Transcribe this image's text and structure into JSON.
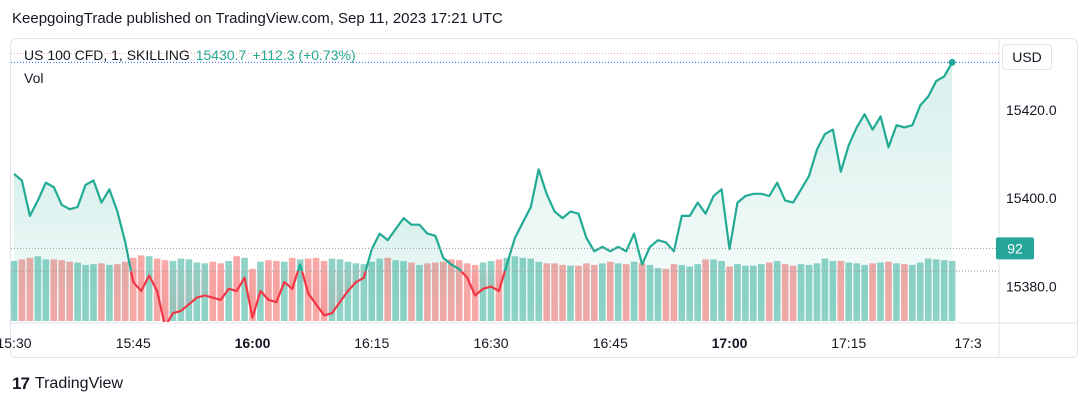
{
  "header": {
    "published_text": "KeepgoingTrade published on TradingView.com, Sep 11, 2023 17:21 UTC"
  },
  "legend": {
    "symbol": "US 100 CFD, 1, SKILLING",
    "price": "15430.7",
    "change": "+112.3 (+0.73%)",
    "volume_label": "Vol"
  },
  "currency_button": "USD",
  "volume_badge": "92",
  "footer": {
    "brand": "TradingView"
  },
  "colors": {
    "up": "#22ab94",
    "down": "#f23645",
    "vol_up": "#8fd3c7",
    "vol_down": "#f7a9a7"
  },
  "chart_data": {
    "type": "line",
    "y_ticks": [
      "15420.0",
      "15400.0",
      "15380.0"
    ],
    "y_tick_values": [
      15420,
      15400,
      15380
    ],
    "ylim": [
      15372,
      15436
    ],
    "x_ticks": [
      {
        "label": "15:30",
        "bold": false,
        "index": 0
      },
      {
        "label": "15:45",
        "bold": false,
        "index": 15
      },
      {
        "label": "16:00",
        "bold": true,
        "index": 30
      },
      {
        "label": "16:15",
        "bold": false,
        "index": 45
      },
      {
        "label": "16:30",
        "bold": false,
        "index": 60
      },
      {
        "label": "16:45",
        "bold": false,
        "index": 75
      },
      {
        "label": "17:00",
        "bold": true,
        "index": 90
      },
      {
        "label": "17:15",
        "bold": false,
        "index": 105
      },
      {
        "label": "17:3",
        "bold": false,
        "index": 120
      }
    ],
    "baseline": 15383.5,
    "last_price": 15430.7,
    "volume_last": 92,
    "prices": [
      15405.5,
      15404.0,
      15396.0,
      15399.5,
      15403.5,
      15402.5,
      15398.5,
      15397.5,
      15398.0,
      15403.0,
      15404.0,
      15399.0,
      15402.0,
      15397.0,
      15390.0,
      15381.0,
      15379.0,
      15382.5,
      15379.0,
      15371.0,
      15374.0,
      15374.5,
      15376.0,
      15377.5,
      15378.0,
      15377.5,
      15377.0,
      15379.5,
      15379.0,
      15382.0,
      15373.0,
      15379.0,
      15377.0,
      15376.5,
      15381.0,
      15379.5,
      15385.0,
      15378.5,
      15376.0,
      15373.5,
      15374.0,
      15376.5,
      15379.0,
      15381.0,
      15382.0,
      15388.5,
      15392.0,
      15390.5,
      15393.0,
      15395.5,
      15394.0,
      15394.0,
      15392.0,
      15391.5,
      15386.5,
      15385.0,
      15384.0,
      15382.0,
      15378.0,
      15379.5,
      15380.0,
      15379.0,
      15385.0,
      15391.0,
      15394.5,
      15398.0,
      15406.5,
      15401.0,
      15397.0,
      15395.5,
      15397.0,
      15396.5,
      15391.0,
      15388.0,
      15389.0,
      15388.0,
      15389.0,
      15388.0,
      15392.0,
      15385.0,
      15389.0,
      15390.5,
      15390.0,
      15388.0,
      15396.0,
      15396.0,
      15399.0,
      15396.5,
      15400.5,
      15402.0,
      15388.5,
      15399.0,
      15400.5,
      15401.0,
      15401.0,
      15400.5,
      15403.5,
      15399.5,
      15399.0,
      15402.0,
      15405.0,
      15411.0,
      15414.5,
      15415.5,
      15406.0,
      15412.0,
      15416.0,
      15419.0,
      15415.5,
      15418.5,
      15411.5,
      15416.5,
      15416.0,
      15416.5,
      15421.0,
      15423.0,
      15426.5,
      15427.5,
      15430.7
    ],
    "volumes": [
      76,
      78,
      80,
      82,
      78,
      78,
      77,
      75,
      74,
      71,
      72,
      73,
      71,
      72,
      75,
      80,
      83,
      82,
      79,
      77,
      76,
      79,
      78,
      74,
      73,
      75,
      73,
      76,
      82,
      80,
      66,
      75,
      77,
      76,
      75,
      80,
      78,
      79,
      80,
      76,
      79,
      78,
      75,
      73,
      72,
      75,
      79,
      80,
      77,
      76,
      74,
      71,
      73,
      74,
      75,
      78,
      77,
      73,
      71,
      74,
      76,
      78,
      80,
      82,
      80,
      79,
      75,
      73,
      73,
      71,
      70,
      70,
      73,
      71,
      73,
      75,
      73,
      72,
      75,
      73,
      71,
      67,
      66,
      72,
      71,
      69,
      72,
      78,
      78,
      76,
      69,
      72,
      70,
      70,
      72,
      74,
      76,
      72,
      70,
      72,
      71,
      73,
      79,
      76,
      76,
      74,
      73,
      71,
      73,
      74,
      75,
      73,
      72,
      71,
      74,
      79,
      78,
      77,
      76
    ]
  }
}
